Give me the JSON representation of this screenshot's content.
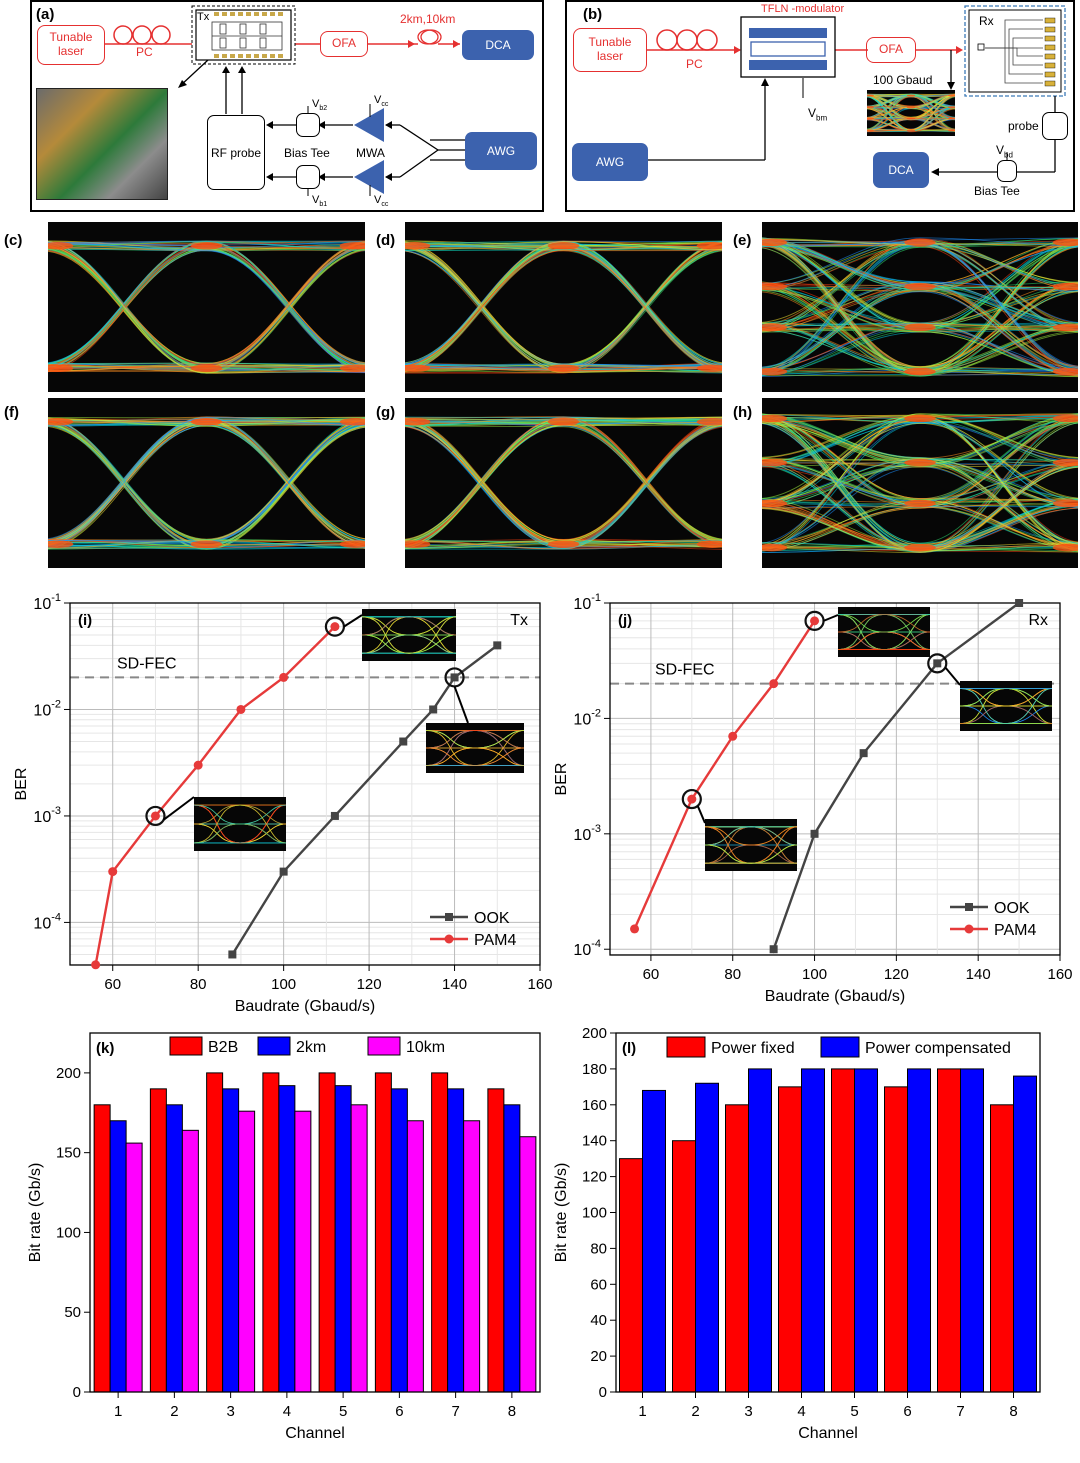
{
  "panels": {
    "a": {
      "label": "(a)",
      "laser": "Tunable\nlaser",
      "pc": "PC",
      "tx": "Tx",
      "ofa": "OFA",
      "fiber": "2km,10km",
      "dca": "DCA",
      "rf_probe": "RF probe",
      "bias_tee": "Bias Tee",
      "mwa": "MWA",
      "awg": "AWG",
      "vb2": "V",
      "vb2_sub": "b2",
      "vb1": "V",
      "vb1_sub": "b1",
      "vcc": "V",
      "vcc_sub": "cc"
    },
    "b": {
      "label": "(b)",
      "laser": "Tunable\nlaser",
      "pc": "PC",
      "modulator": "TFLN -modulator",
      "ofa": "OFA",
      "rx": "Rx",
      "baud": "100 Gbaud",
      "vbm": "V",
      "vbm_sub": "bm",
      "probe": "probe",
      "vbd": "V",
      "vbd_sub": "bd",
      "awg": "AWG",
      "dca": "DCA",
      "bias_tee": "Bias Tee"
    },
    "eyes": [
      {
        "label": "(c)",
        "type": "ook"
      },
      {
        "label": "(d)",
        "type": "ook"
      },
      {
        "label": "(e)",
        "type": "pam4"
      },
      {
        "label": "(f)",
        "type": "ook"
      },
      {
        "label": "(g)",
        "type": "ook"
      },
      {
        "label": "(h)",
        "type": "pam4"
      }
    ]
  },
  "chart_data": [
    {
      "id": "i",
      "label": "(i)",
      "type": "line",
      "corner": "Tx",
      "xlabel": "Baudrate (Gbaud/s)",
      "ylabel": "BER",
      "xlim": [
        50,
        160
      ],
      "ylim_log": [
        -4.4,
        -1
      ],
      "xticks": [
        60,
        80,
        100,
        120,
        140,
        160
      ],
      "threshold": {
        "label": "SD-FEC",
        "value": 0.02
      },
      "series": [
        {
          "name": "OOK",
          "color": "#444444",
          "marker": "square",
          "x": [
            88,
            100,
            112,
            128,
            135,
            140,
            150
          ],
          "y": [
            5e-05,
            0.0003,
            0.001,
            0.005,
            0.01,
            0.02,
            0.04
          ]
        },
        {
          "name": "PAM4",
          "color": "#e63a3a",
          "marker": "circle",
          "x": [
            56,
            60,
            70,
            80,
            90,
            100,
            112
          ],
          "y": [
            4e-05,
            0.0003,
            0.001,
            0.003,
            0.01,
            0.02,
            0.06
          ]
        }
      ],
      "highlights": [
        {
          "series": 1,
          "x": 70,
          "y": 0.001
        },
        {
          "series": 1,
          "x": 112,
          "y": 0.06
        },
        {
          "series": 0,
          "x": 140,
          "y": 0.02
        }
      ],
      "legend": "bottom-right",
      "grid": true
    },
    {
      "id": "j",
      "label": "(j)",
      "type": "line",
      "corner": "Rx",
      "xlabel": "Baudrate (Gbaud/s)",
      "ylabel": "BER",
      "xlim": [
        50,
        160
      ],
      "ylim_log": [
        -4.05,
        -1
      ],
      "xticks": [
        60,
        80,
        100,
        120,
        140,
        160
      ],
      "threshold": {
        "label": "SD-FEC",
        "value": 0.02
      },
      "series": [
        {
          "name": "OOK",
          "color": "#444444",
          "marker": "square",
          "x": [
            90,
            100,
            112,
            130,
            150
          ],
          "y": [
            0.0001,
            0.001,
            0.005,
            0.03,
            0.1
          ]
        },
        {
          "name": "PAM4",
          "color": "#e63a3a",
          "marker": "circle",
          "x": [
            56,
            70,
            80,
            90,
            100
          ],
          "y": [
            0.00015,
            0.002,
            0.007,
            0.02,
            0.07
          ]
        }
      ],
      "highlights": [
        {
          "series": 1,
          "x": 70,
          "y": 0.002
        },
        {
          "series": 1,
          "x": 100,
          "y": 0.07
        },
        {
          "series": 0,
          "x": 130,
          "y": 0.03
        }
      ],
      "legend": "bottom-right",
      "grid": true
    },
    {
      "id": "k",
      "label": "(k)",
      "type": "bar",
      "xlabel": "Channel",
      "ylabel": "Bit rate (Gb/s)",
      "ylim": [
        0,
        225
      ],
      "yticks": [
        0,
        50,
        100,
        150,
        200
      ],
      "categories": [
        "1",
        "2",
        "3",
        "4",
        "5",
        "6",
        "7",
        "8"
      ],
      "series": [
        {
          "name": "B2B",
          "color": "#ff0000",
          "values": [
            180,
            190,
            200,
            200,
            200,
            200,
            200,
            190
          ]
        },
        {
          "name": "2km",
          "color": "#0000ff",
          "values": [
            170,
            180,
            190,
            192,
            192,
            190,
            190,
            180
          ]
        },
        {
          "name": "10km",
          "color": "#ff00ff",
          "values": [
            156,
            164,
            176,
            176,
            180,
            170,
            170,
            160
          ]
        }
      ],
      "legend": "top"
    },
    {
      "id": "l",
      "label": "(l)",
      "type": "bar",
      "xlabel": "Channel",
      "ylabel": "Bit rate (Gb/s)",
      "ylim": [
        0,
        200
      ],
      "yticks": [
        0,
        20,
        40,
        60,
        80,
        100,
        120,
        140,
        160,
        180,
        200
      ],
      "categories": [
        "1",
        "2",
        "3",
        "4",
        "5",
        "6",
        "7",
        "8"
      ],
      "series": [
        {
          "name": "Power fixed",
          "color": "#ff0000",
          "values": [
            130,
            140,
            160,
            170,
            180,
            170,
            180,
            160
          ]
        },
        {
          "name": "Power compensated",
          "color": "#0000ff",
          "values": [
            168,
            172,
            180,
            180,
            180,
            180,
            180,
            176
          ]
        }
      ],
      "legend": "top"
    }
  ]
}
